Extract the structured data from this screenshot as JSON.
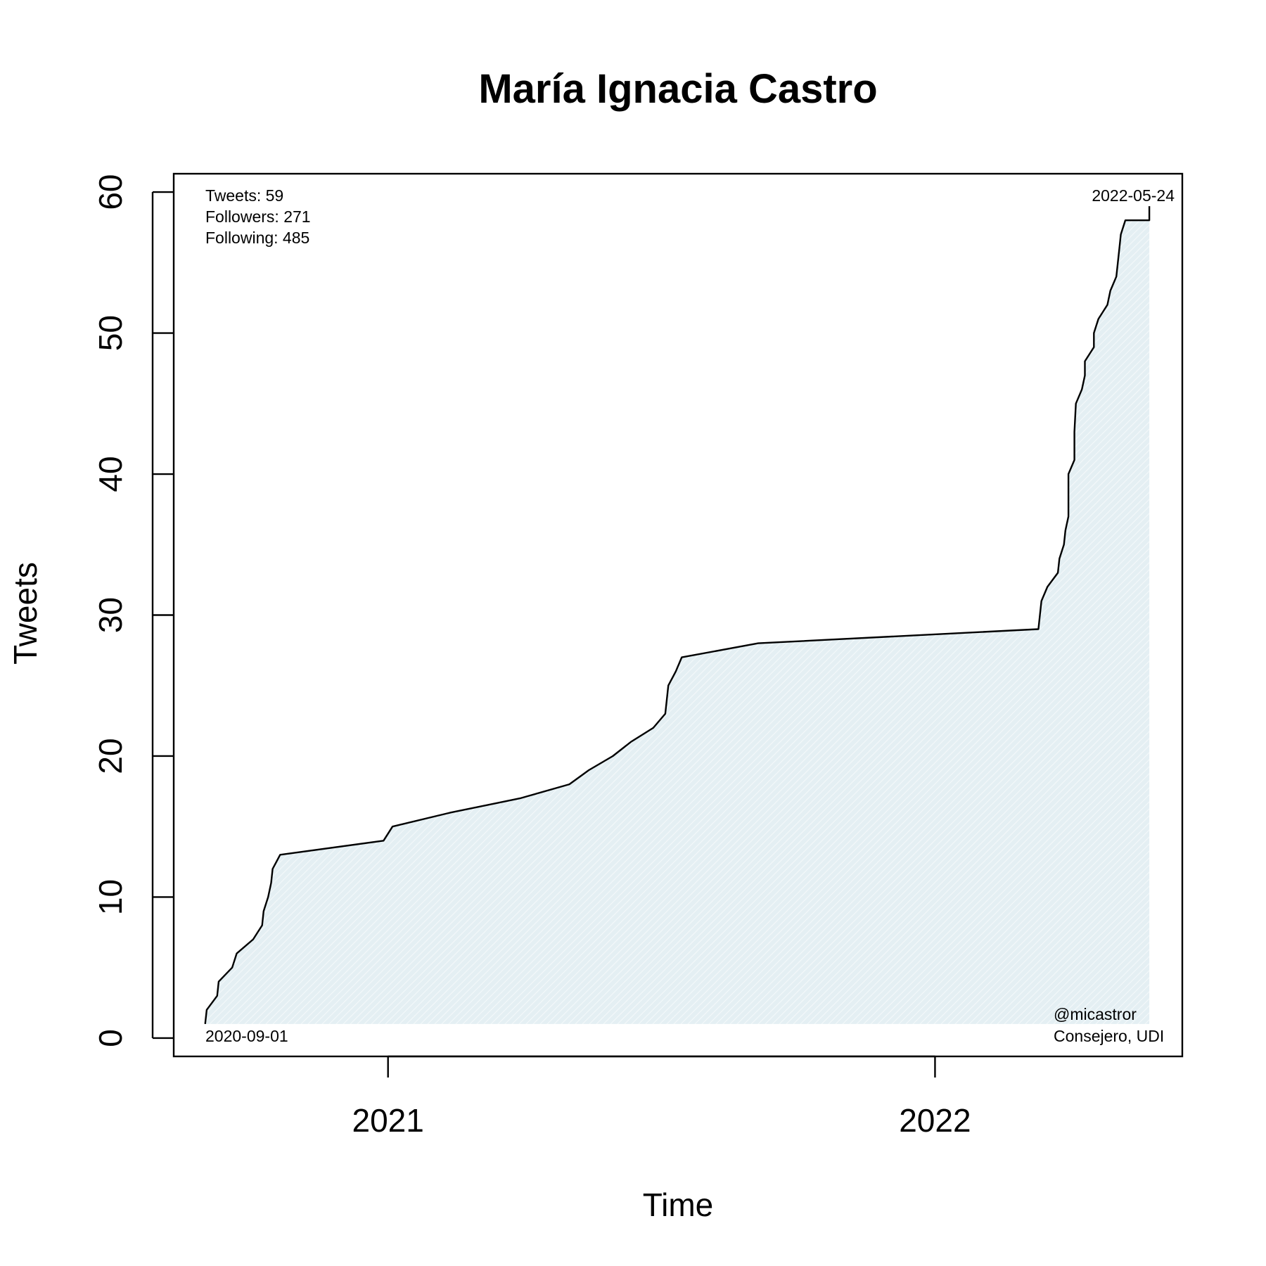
{
  "chart_data": {
    "type": "line",
    "title": "María Ignacia Castro",
    "xlabel": "Time",
    "ylabel": "Tweets",
    "xlim": [
      "2020-08-11",
      "2022-06-15"
    ],
    "ylim": [
      -1.3,
      61.3
    ],
    "x_ticks": [
      {
        "date": "2021-01-01",
        "label": "2021"
      },
      {
        "date": "2022-01-01",
        "label": "2022"
      }
    ],
    "y_ticks": [
      0,
      10,
      20,
      30,
      40,
      50,
      60
    ],
    "grid": false,
    "series": [
      {
        "name": "Tweets",
        "color": "#000000",
        "fill": "#e4eff3",
        "points": [
          [
            "2020-09-01",
            1
          ],
          [
            "2020-09-02",
            2
          ],
          [
            "2020-09-09",
            3
          ],
          [
            "2020-09-10",
            4
          ],
          [
            "2020-09-19",
            5
          ],
          [
            "2020-09-22",
            6
          ],
          [
            "2020-10-03",
            7
          ],
          [
            "2020-10-09",
            8
          ],
          [
            "2020-10-10",
            9
          ],
          [
            "2020-10-13",
            10
          ],
          [
            "2020-10-15",
            11
          ],
          [
            "2020-10-16",
            12
          ],
          [
            "2020-10-21",
            13
          ],
          [
            "2020-12-29",
            14
          ],
          [
            "2021-01-04",
            15
          ],
          [
            "2021-02-12",
            16
          ],
          [
            "2021-03-30",
            17
          ],
          [
            "2021-05-02",
            18
          ],
          [
            "2021-05-15",
            19
          ],
          [
            "2021-05-31",
            20
          ],
          [
            "2021-06-12",
            21
          ],
          [
            "2021-06-27",
            22
          ],
          [
            "2021-07-05",
            23
          ],
          [
            "2021-07-07",
            25
          ],
          [
            "2021-07-12",
            26
          ],
          [
            "2021-07-16",
            27
          ],
          [
            "2021-09-05",
            28
          ],
          [
            "2022-03-11",
            29
          ],
          [
            "2022-03-13",
            31
          ],
          [
            "2022-03-17",
            32
          ],
          [
            "2022-03-24",
            33
          ],
          [
            "2022-03-25",
            34
          ],
          [
            "2022-03-28",
            35
          ],
          [
            "2022-03-29",
            36
          ],
          [
            "2022-03-31",
            37
          ],
          [
            "2022-03-31",
            40
          ],
          [
            "2022-04-04",
            41
          ],
          [
            "2022-04-04",
            43
          ],
          [
            "2022-04-05",
            45
          ],
          [
            "2022-04-09",
            46
          ],
          [
            "2022-04-11",
            47
          ],
          [
            "2022-04-11",
            48
          ],
          [
            "2022-04-17",
            49
          ],
          [
            "2022-04-17",
            50
          ],
          [
            "2022-04-20",
            51
          ],
          [
            "2022-04-26",
            52
          ],
          [
            "2022-04-28",
            53
          ],
          [
            "2022-05-02",
            54
          ],
          [
            "2022-05-04",
            56
          ],
          [
            "2022-05-05",
            57
          ],
          [
            "2022-05-08",
            58
          ],
          [
            "2022-05-24",
            58
          ],
          [
            "2022-05-24",
            59
          ]
        ]
      }
    ],
    "annotations": {
      "tweets": "Tweets: 59",
      "followers": "Followers: 271",
      "following": "Following: 485",
      "start_date": "2020-09-01",
      "end_date": "2022-05-24",
      "handle": "@micastror",
      "role": "Consejero, UDI"
    }
  }
}
